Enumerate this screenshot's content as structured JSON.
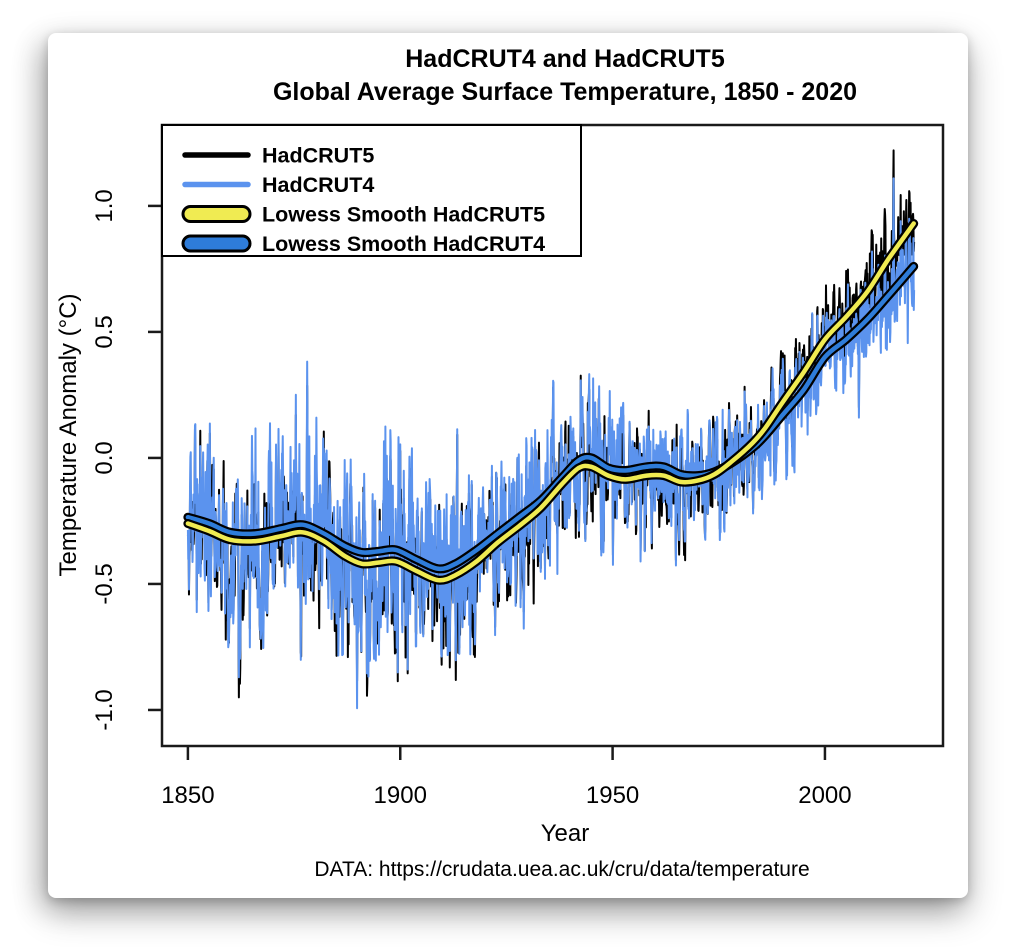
{
  "header": {
    "title_line1": "HadCRUT4 and HadCRUT5",
    "title_line2": "Global Average Surface Temperature, 1850 - 2020"
  },
  "footer": {
    "source": "DATA: https://crudata.uea.ac.uk/cru/data/temperature"
  },
  "axes": {
    "x": {
      "label": "Year",
      "ticks": [
        1850,
        1900,
        1950,
        2000
      ]
    },
    "y": {
      "label": "Temperature Anomaly (°C)",
      "tick_labels": [
        "-1.0",
        "-0.5",
        "0.0",
        "0.5",
        "1.0"
      ],
      "tick_values": [
        -1.0,
        -0.5,
        0.0,
        0.5,
        1.0
      ]
    }
  },
  "legend": {
    "items": [
      {
        "label": "HadCRUT5",
        "swatch": "line",
        "color": "#000000"
      },
      {
        "label": "HadCRUT4",
        "swatch": "line",
        "color": "#5B93EE"
      },
      {
        "label": "Lowess Smooth HadCRUT5",
        "swatch": "band",
        "color": "#F0EB52",
        "outline": "#000000"
      },
      {
        "label": "Lowess Smooth HadCRUT4",
        "swatch": "band",
        "color": "#2E7CD9",
        "outline": "#000000"
      }
    ]
  },
  "colors": {
    "hadcrut5_monthly": "#000000",
    "hadcrut4_monthly": "#5B93EE",
    "lowess_hadcrut5": "#F0EB52",
    "lowess_hadcrut4": "#2E7CD9",
    "smooth_outline": "#000000",
    "frame": "#1a1a1a",
    "background": "#ffffff"
  },
  "chart_data": {
    "type": "line",
    "title": "HadCRUT4 and HadCRUT5 — Global Average Surface Temperature, 1850 - 2020",
    "xlabel": "Year",
    "ylabel": "Temperature Anomaly (°C)",
    "xlim": [
      1843.9,
      2027.8
    ],
    "ylim": [
      -1.143,
      1.321
    ],
    "xticks": [
      1850,
      1900,
      1950,
      2000
    ],
    "yticks": [
      -1.0,
      -0.5,
      0.0,
      0.5,
      1.0
    ],
    "grid": false,
    "legend_position": "top-left",
    "series": [
      {
        "name": "Lowess Smooth HadCRUT5",
        "kind": "smooth",
        "color": "#F0EB52",
        "points": [
          [
            1850,
            -0.26
          ],
          [
            1855,
            -0.29
          ],
          [
            1860,
            -0.325
          ],
          [
            1866,
            -0.33
          ],
          [
            1872,
            -0.31
          ],
          [
            1877,
            -0.295
          ],
          [
            1882,
            -0.33
          ],
          [
            1887,
            -0.39
          ],
          [
            1891,
            -0.42
          ],
          [
            1895,
            -0.415
          ],
          [
            1899,
            -0.41
          ],
          [
            1904,
            -0.45
          ],
          [
            1909,
            -0.485
          ],
          [
            1913,
            -0.465
          ],
          [
            1918,
            -0.41
          ],
          [
            1923,
            -0.335
          ],
          [
            1928,
            -0.27
          ],
          [
            1933,
            -0.2
          ],
          [
            1938,
            -0.105
          ],
          [
            1942,
            -0.04
          ],
          [
            1945,
            -0.035
          ],
          [
            1949,
            -0.07
          ],
          [
            1953,
            -0.085
          ],
          [
            1958,
            -0.07
          ],
          [
            1962,
            -0.07
          ],
          [
            1966,
            -0.095
          ],
          [
            1970,
            -0.09
          ],
          [
            1974,
            -0.065
          ],
          [
            1978,
            -0.015
          ],
          [
            1983,
            0.06
          ],
          [
            1986,
            0.12
          ],
          [
            1990,
            0.22
          ],
          [
            1995,
            0.34
          ],
          [
            2000,
            0.47
          ],
          [
            2005,
            0.56
          ],
          [
            2010,
            0.66
          ],
          [
            2015,
            0.79
          ],
          [
            2020.9,
            0.93
          ]
        ]
      },
      {
        "name": "Lowess Smooth HadCRUT4",
        "kind": "smooth",
        "color": "#2E7CD9",
        "points": [
          [
            1850,
            -0.235
          ],
          [
            1855,
            -0.26
          ],
          [
            1860,
            -0.295
          ],
          [
            1866,
            -0.3
          ],
          [
            1872,
            -0.28
          ],
          [
            1877,
            -0.265
          ],
          [
            1882,
            -0.3
          ],
          [
            1887,
            -0.35
          ],
          [
            1891,
            -0.375
          ],
          [
            1895,
            -0.37
          ],
          [
            1899,
            -0.365
          ],
          [
            1904,
            -0.405
          ],
          [
            1909,
            -0.44
          ],
          [
            1913,
            -0.42
          ],
          [
            1918,
            -0.365
          ],
          [
            1923,
            -0.3
          ],
          [
            1928,
            -0.235
          ],
          [
            1933,
            -0.17
          ],
          [
            1938,
            -0.08
          ],
          [
            1942,
            -0.01
          ],
          [
            1945,
            0.0
          ],
          [
            1949,
            -0.04
          ],
          [
            1953,
            -0.05
          ],
          [
            1958,
            -0.035
          ],
          [
            1962,
            -0.035
          ],
          [
            1966,
            -0.065
          ],
          [
            1970,
            -0.07
          ],
          [
            1974,
            -0.055
          ],
          [
            1978,
            -0.02
          ],
          [
            1983,
            0.04
          ],
          [
            1986,
            0.09
          ],
          [
            1990,
            0.17
          ],
          [
            1995,
            0.27
          ],
          [
            2000,
            0.4
          ],
          [
            2005,
            0.47
          ],
          [
            2010,
            0.55
          ],
          [
            2015,
            0.645
          ],
          [
            2020.9,
            0.76
          ]
        ]
      },
      {
        "name": "HadCRUT5",
        "kind": "monthly",
        "color": "#000000",
        "generated_from": "monthly_noise",
        "baseline": "Lowess Smooth HadCRUT5"
      },
      {
        "name": "HadCRUT4",
        "kind": "monthly",
        "color": "#5B93EE",
        "generated_from": "monthly_noise",
        "baseline": "Lowess Smooth HadCRUT4"
      }
    ],
    "monthly_noise": {
      "seed": 1337,
      "start": 1850.0,
      "end": 2020.96,
      "phi_shared": 0.5,
      "phi_independent": 0.3,
      "sigma_eras": [
        [
          1843,
          0.15
        ],
        [
          1880,
          0.165
        ],
        [
          1918,
          0.125
        ],
        [
          1950,
          0.1
        ],
        [
          1978,
          0.088
        ]
      ],
      "had4_shared_scale": [
        [
          1850,
          1.13
        ],
        [
          1900,
          1.1
        ],
        [
          1940,
          1.0
        ],
        [
          1970,
          0.98
        ],
        [
          2020,
          0.93
        ]
      ],
      "had5_ind_frac": 0.38,
      "had4_ind_frac": 0.5,
      "events": [
        [
          1857.9,
          -0.62,
          -0.55,
          0.1
        ],
        [
          1862.0,
          -0.95,
          -0.87,
          0.1
        ],
        [
          1864.6,
          -0.7,
          -0.78,
          0.08
        ],
        [
          1869.3,
          0.12,
          0.2,
          0.08
        ],
        [
          1875.4,
          0.2,
          0.28,
          0.08
        ],
        [
          1878.1,
          0.3,
          0.4,
          0.1
        ],
        [
          1886.5,
          -0.72,
          -0.78,
          0.09
        ],
        [
          1892.2,
          -1.04,
          -0.95,
          0.1
        ],
        [
          1893.8,
          -0.8,
          -0.88,
          0.08
        ],
        [
          1903.7,
          -0.72,
          -0.79,
          0.1
        ],
        [
          1911.2,
          -0.74,
          -0.84,
          0.1
        ],
        [
          1917.6,
          -0.8,
          -0.75,
          0.09
        ],
        [
          1929.1,
          -0.62,
          -0.69,
          0.09
        ],
        [
          1937.9,
          0.1,
          0.14,
          0.08
        ],
        [
          1944.2,
          0.26,
          0.22,
          0.1
        ],
        [
          1950.1,
          -0.4,
          -0.44,
          0.09
        ],
        [
          1956.6,
          -0.38,
          -0.43,
          0.09
        ],
        [
          1964.9,
          -0.42,
          -0.44,
          0.09
        ],
        [
          1972.9,
          0.12,
          0.1,
          0.08
        ],
        [
          1976.3,
          -0.32,
          -0.35,
          0.09
        ],
        [
          1981.1,
          0.3,
          0.28,
          0.08
        ],
        [
          1985.2,
          -0.18,
          -0.22,
          0.08
        ],
        [
          1990.1,
          0.42,
          0.4,
          0.08
        ],
        [
          1992.8,
          -0.05,
          -0.1,
          0.09
        ],
        [
          1998.2,
          0.62,
          0.6,
          0.1
        ],
        [
          2008.0,
          0.2,
          0.16,
          0.09
        ],
        [
          2010.3,
          0.7,
          0.64,
          0.08
        ],
        [
          2016.15,
          1.23,
          1.12,
          0.1
        ],
        [
          2019.9,
          1.06,
          0.94,
          0.09
        ],
        [
          2020.95,
          0.78,
          0.52,
          0.07
        ]
      ]
    }
  }
}
